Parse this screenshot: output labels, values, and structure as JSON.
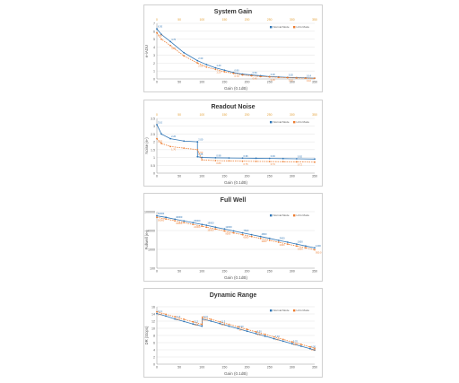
{
  "colors": {
    "series1": "#2e75b6",
    "series2": "#ed7d31",
    "grid": "#e3e3e3",
    "axis": "#a6a6a6",
    "text": "#595959"
  },
  "chart_data": [
    {
      "type": "line",
      "title": "System Gain",
      "xlabel": "Gain (0.1dB)",
      "ylabel": "e-/ADU",
      "xlim": [
        0,
        350
      ],
      "ylim": [
        0,
        7
      ],
      "x_ticks": [
        0,
        50,
        100,
        150,
        200,
        250,
        300,
        350
      ],
      "y_ticks": [
        0,
        1,
        2,
        3,
        4,
        5,
        6,
        7
      ],
      "top_x_ticks": [
        0,
        50,
        100,
        150,
        200,
        250,
        300,
        350
      ],
      "legend_position": "top-right",
      "series": [
        {
          "name": "Normal Mode",
          "x": [
            0,
            10,
            30,
            60,
            90,
            110,
            130,
            150,
            170,
            190,
            210,
            230,
            250,
            270,
            290,
            310,
            330,
            350
          ],
          "values": [
            6.3,
            5.6,
            4.7,
            3.3,
            2.3,
            1.8,
            1.4,
            1.1,
            0.8,
            0.6,
            0.5,
            0.4,
            0.3,
            0.25,
            0.2,
            0.17,
            0.14,
            0.1
          ]
        },
        {
          "name": "LCG Mode",
          "x": [
            0,
            10,
            30,
            60,
            90,
            110,
            130,
            150,
            170,
            190,
            210,
            230,
            250,
            270,
            290,
            310,
            330,
            350
          ],
          "values": [
            5.8,
            5.0,
            4.2,
            2.9,
            2.0,
            1.5,
            1.2,
            0.9,
            0.7,
            0.5,
            0.4,
            0.3,
            0.25,
            0.2,
            0.16,
            0.13,
            0.1,
            0.08
          ]
        }
      ]
    },
    {
      "type": "line",
      "title": "Readout Noise",
      "xlabel": "Gain (0.1dB)",
      "ylabel": "Noise (e-)",
      "xlim": [
        0,
        350
      ],
      "ylim": [
        0,
        3.5
      ],
      "x_ticks": [
        0,
        50,
        100,
        150,
        200,
        250,
        300,
        350
      ],
      "y_ticks": [
        0,
        0.5,
        1,
        1.5,
        2,
        2.5,
        3,
        3.5
      ],
      "top_x_ticks": [
        0,
        50,
        100,
        150,
        200,
        250,
        300,
        350
      ],
      "legend_position": "top-right",
      "series": [
        {
          "name": "Normal Mode",
          "x": [
            0,
            10,
            30,
            60,
            90,
            89.9,
            90.1,
            100,
            130,
            160,
            190,
            220,
            250,
            280,
            310,
            350
          ],
          "values": [
            3.1,
            2.5,
            2.2,
            2.05,
            2.0,
            2.0,
            1.05,
            1.0,
            0.98,
            0.97,
            0.96,
            0.95,
            0.94,
            0.93,
            0.92,
            0.9
          ]
        },
        {
          "name": "LCG Mode",
          "x": [
            0,
            10,
            30,
            60,
            90,
            100,
            130,
            160,
            190,
            220,
            250,
            280,
            310,
            350
          ],
          "values": [
            2.2,
            1.9,
            1.7,
            1.6,
            1.5,
            0.85,
            0.8,
            0.78,
            0.76,
            0.75,
            0.74,
            0.73,
            0.72,
            0.7
          ]
        }
      ]
    },
    {
      "type": "line",
      "title": "Full Well",
      "xlabel": "Gain (0.1dB)",
      "ylabel": "Fullwell (e-)",
      "xlim": [
        0,
        350
      ],
      "ylim": [
        100,
        100000
      ],
      "yscale": "log",
      "x_ticks": [
        0,
        50,
        100,
        150,
        200,
        250,
        300,
        350
      ],
      "y_ticks": [
        100,
        1000,
        10000,
        100000
      ],
      "legend_position": "top-right",
      "series": [
        {
          "name": "Normal Mode",
          "x": [
            0,
            20,
            40,
            60,
            80,
            100,
            110,
            130,
            150,
            170,
            190,
            210,
            230,
            250,
            270,
            290,
            310,
            330,
            350
          ],
          "values": [
            60000,
            50000,
            40000,
            32000,
            26000,
            21000,
            19000,
            15000,
            12000,
            9500,
            7500,
            6000,
            4800,
            3800,
            3000,
            2400,
            1900,
            1500,
            1200
          ]
        },
        {
          "name": "LCG Mode",
          "x": [
            0,
            20,
            40,
            60,
            80,
            100,
            110,
            130,
            150,
            170,
            190,
            210,
            230,
            250,
            270,
            290,
            310,
            330,
            350
          ],
          "values": [
            50000,
            41000,
            33000,
            26000,
            21000,
            17000,
            15000,
            12000,
            9500,
            7500,
            6000,
            4800,
            3800,
            3000,
            2400,
            1900,
            1500,
            1200,
            950
          ]
        }
      ]
    },
    {
      "type": "line",
      "title": "Dynamic Range",
      "xlabel": "Gain (0.1dB)",
      "ylabel": "DR (Stops)",
      "xlim": [
        0,
        350
      ],
      "ylim": [
        0,
        16
      ],
      "x_ticks": [
        0,
        50,
        100,
        150,
        200,
        250,
        300,
        350
      ],
      "y_ticks": [
        0,
        2,
        4,
        6,
        8,
        10,
        12,
        14,
        16
      ],
      "legend_position": "top-right",
      "series": [
        {
          "name": "Normal Mode",
          "x": [
            0,
            20,
            40,
            60,
            80,
            100,
            101,
            120,
            140,
            160,
            180,
            200,
            220,
            240,
            260,
            280,
            300,
            320,
            340,
            350
          ],
          "values": [
            14.1,
            13.4,
            12.6,
            11.9,
            11.2,
            10.6,
            12.6,
            12.0,
            11.3,
            10.6,
            9.9,
            9.2,
            8.5,
            7.8,
            7.1,
            6.4,
            5.7,
            5.0,
            4.3,
            3.9
          ]
        },
        {
          "name": "LCG Mode",
          "x": [
            0,
            20,
            40,
            60,
            80,
            100,
            101,
            120,
            140,
            160,
            180,
            200,
            220,
            240,
            260,
            280,
            300,
            320,
            340,
            350
          ],
          "values": [
            14.6,
            13.9,
            13.2,
            12.5,
            11.8,
            11.1,
            13.1,
            12.5,
            11.8,
            11.1,
            10.4,
            9.7,
            9.0,
            8.3,
            7.6,
            6.9,
            6.2,
            5.5,
            4.8,
            4.4
          ]
        }
      ]
    }
  ]
}
